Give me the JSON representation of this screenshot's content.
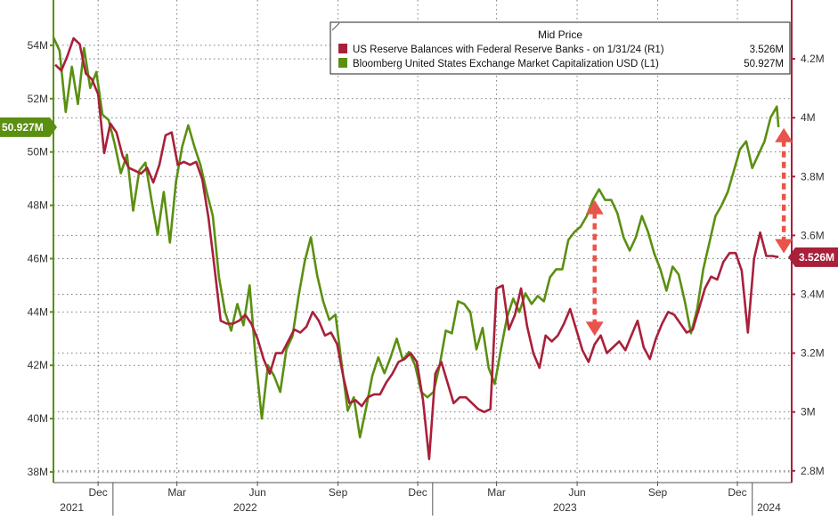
{
  "chart_data": {
    "type": "line",
    "legend": {
      "title": "Mid Price",
      "position": "top-right",
      "entries": [
        {
          "label": "US Reserve Balances with Federal Reserve Banks -  on 1/31/24  (R1)",
          "value": "3.526M",
          "color": "#a8203a"
        },
        {
          "label": "Bloomberg United States Exchange Market Capitalization USD  (L1)",
          "value": "50.927M",
          "color": "#5a8f12"
        }
      ]
    },
    "y_left": {
      "min": 37.6,
      "max": 55.7,
      "ticks": [
        "38M",
        "40M",
        "42M",
        "44M",
        "46M",
        "48M",
        "50M",
        "52M",
        "54M"
      ],
      "tick_values": [
        38,
        40,
        42,
        44,
        46,
        48,
        50,
        52,
        54
      ],
      "color": "#5a8f12"
    },
    "y_right": {
      "min": 2.76,
      "max": 4.4,
      "ticks": [
        "2.8M",
        "3M",
        "3.2M",
        "3.4M",
        "3.6M",
        "3.8M",
        "4M",
        "4.2M"
      ],
      "tick_values": [
        2.8,
        3.0,
        3.2,
        3.4,
        3.6,
        3.8,
        4.0,
        4.2
      ],
      "color": "#a8203a"
    },
    "x_axis": {
      "start": "2021-10-25",
      "end": "2024-02-15",
      "month_ticks": [
        {
          "label": "Dec",
          "date": "2021-12-15"
        },
        {
          "label": "Mar",
          "date": "2022-03-15"
        },
        {
          "label": "Jun",
          "date": "2022-06-15"
        },
        {
          "label": "Sep",
          "date": "2022-09-15"
        },
        {
          "label": "Dec",
          "date": "2022-12-15"
        },
        {
          "label": "Mar",
          "date": "2023-03-15"
        },
        {
          "label": "Jun",
          "date": "2023-06-15"
        },
        {
          "label": "Sep",
          "date": "2023-09-15"
        },
        {
          "label": "Dec",
          "date": "2023-12-15"
        }
      ],
      "year_labels": [
        {
          "label": "2021",
          "date": "2021-11-15"
        },
        {
          "label": "2022",
          "date": "2022-06-01"
        },
        {
          "label": "2023",
          "date": "2023-06-01"
        },
        {
          "label": "2024",
          "date": "2024-01-20"
        }
      ]
    },
    "last_value_badges": [
      {
        "axis": "left",
        "value": 50.927,
        "text": "50.927M",
        "color": "#5a8f12"
      },
      {
        "axis": "right",
        "value": 3.526,
        "text": "3.526M",
        "color": "#a8203a"
      }
    ],
    "grid": true,
    "series": [
      {
        "name": "Bloomberg United States Exchange Market Capitalization USD",
        "axis": "left",
        "color": "#5a8f12",
        "points": [
          [
            "2021-10-25",
            54.3
          ],
          [
            "2021-11-01",
            53.8
          ],
          [
            "2021-11-08",
            51.5
          ],
          [
            "2021-11-15",
            53.2
          ],
          [
            "2021-11-22",
            51.8
          ],
          [
            "2021-11-29",
            53.9
          ],
          [
            "2021-12-06",
            52.4
          ],
          [
            "2021-12-13",
            53.0
          ],
          [
            "2021-12-20",
            51.4
          ],
          [
            "2021-12-27",
            51.2
          ],
          [
            "2022-01-03",
            50.3
          ],
          [
            "2022-01-10",
            49.2
          ],
          [
            "2022-01-17",
            49.9
          ],
          [
            "2022-01-24",
            47.8
          ],
          [
            "2022-01-31",
            49.3
          ],
          [
            "2022-02-07",
            49.6
          ],
          [
            "2022-02-14",
            48.2
          ],
          [
            "2022-02-21",
            46.9
          ],
          [
            "2022-02-28",
            48.5
          ],
          [
            "2022-03-07",
            46.6
          ],
          [
            "2022-03-14",
            48.9
          ],
          [
            "2022-03-21",
            50.2
          ],
          [
            "2022-03-28",
            51.0
          ],
          [
            "2022-04-04",
            50.2
          ],
          [
            "2022-04-11",
            49.5
          ],
          [
            "2022-04-18",
            48.5
          ],
          [
            "2022-04-25",
            47.6
          ],
          [
            "2022-05-02",
            45.3
          ],
          [
            "2022-05-09",
            44.0
          ],
          [
            "2022-05-16",
            43.3
          ],
          [
            "2022-05-23",
            44.3
          ],
          [
            "2022-05-30",
            43.5
          ],
          [
            "2022-06-06",
            45.0
          ],
          [
            "2022-06-13",
            42.2
          ],
          [
            "2022-06-20",
            40.0
          ],
          [
            "2022-06-27",
            42.0
          ],
          [
            "2022-07-04",
            41.6
          ],
          [
            "2022-07-11",
            41.0
          ],
          [
            "2022-07-18",
            42.6
          ],
          [
            "2022-07-25",
            43.1
          ],
          [
            "2022-08-01",
            44.6
          ],
          [
            "2022-08-08",
            45.9
          ],
          [
            "2022-08-15",
            46.8
          ],
          [
            "2022-08-22",
            45.4
          ],
          [
            "2022-08-29",
            44.4
          ],
          [
            "2022-09-05",
            43.7
          ],
          [
            "2022-09-12",
            43.9
          ],
          [
            "2022-09-19",
            42.1
          ],
          [
            "2022-09-26",
            40.3
          ],
          [
            "2022-10-03",
            40.8
          ],
          [
            "2022-10-10",
            39.3
          ],
          [
            "2022-10-17",
            40.4
          ],
          [
            "2022-10-24",
            41.6
          ],
          [
            "2022-10-31",
            42.3
          ],
          [
            "2022-11-07",
            41.7
          ],
          [
            "2022-11-14",
            42.3
          ],
          [
            "2022-11-21",
            43.0
          ],
          [
            "2022-11-28",
            42.2
          ],
          [
            "2022-12-05",
            42.5
          ],
          [
            "2022-12-12",
            42.0
          ],
          [
            "2022-12-19",
            41.0
          ],
          [
            "2022-12-26",
            40.8
          ],
          [
            "2023-01-02",
            41.0
          ],
          [
            "2023-01-09",
            42.0
          ],
          [
            "2023-01-16",
            43.3
          ],
          [
            "2023-01-23",
            43.2
          ],
          [
            "2023-01-30",
            44.4
          ],
          [
            "2023-02-06",
            44.3
          ],
          [
            "2023-02-13",
            44.0
          ],
          [
            "2023-02-20",
            42.6
          ],
          [
            "2023-02-27",
            43.4
          ],
          [
            "2023-03-06",
            41.9
          ],
          [
            "2023-03-13",
            41.3
          ],
          [
            "2023-03-20",
            42.6
          ],
          [
            "2023-03-27",
            43.8
          ],
          [
            "2023-04-03",
            44.5
          ],
          [
            "2023-04-10",
            44.0
          ],
          [
            "2023-04-17",
            44.7
          ],
          [
            "2023-04-24",
            44.3
          ],
          [
            "2023-05-01",
            44.6
          ],
          [
            "2023-05-08",
            44.4
          ],
          [
            "2023-05-15",
            45.3
          ],
          [
            "2023-05-22",
            45.6
          ],
          [
            "2023-05-29",
            45.6
          ],
          [
            "2023-06-05",
            46.7
          ],
          [
            "2023-06-12",
            47.0
          ],
          [
            "2023-06-19",
            47.2
          ],
          [
            "2023-06-26",
            47.6
          ],
          [
            "2023-07-03",
            48.2
          ],
          [
            "2023-07-10",
            48.6
          ],
          [
            "2023-07-17",
            48.2
          ],
          [
            "2023-07-24",
            48.2
          ],
          [
            "2023-07-31",
            47.7
          ],
          [
            "2023-08-07",
            46.8
          ],
          [
            "2023-08-14",
            46.3
          ],
          [
            "2023-08-21",
            46.8
          ],
          [
            "2023-08-28",
            47.6
          ],
          [
            "2023-09-04",
            47.0
          ],
          [
            "2023-09-11",
            46.2
          ],
          [
            "2023-09-18",
            45.6
          ],
          [
            "2023-09-25",
            44.8
          ],
          [
            "2023-10-02",
            45.7
          ],
          [
            "2023-10-09",
            45.4
          ],
          [
            "2023-10-16",
            44.4
          ],
          [
            "2023-10-23",
            43.2
          ],
          [
            "2023-10-30",
            44.1
          ],
          [
            "2023-11-06",
            45.6
          ],
          [
            "2023-11-13",
            46.6
          ],
          [
            "2023-11-20",
            47.6
          ],
          [
            "2023-11-27",
            48.0
          ],
          [
            "2023-12-04",
            48.5
          ],
          [
            "2023-12-11",
            49.3
          ],
          [
            "2023-12-18",
            50.1
          ],
          [
            "2023-12-25",
            50.4
          ],
          [
            "2024-01-01",
            49.4
          ],
          [
            "2024-01-08",
            49.9
          ],
          [
            "2024-01-15",
            50.4
          ],
          [
            "2024-01-22",
            51.3
          ],
          [
            "2024-01-29",
            51.7
          ],
          [
            "2024-01-31",
            50.927
          ]
        ]
      },
      {
        "name": "US Reserve Balances with Federal Reserve Banks",
        "axis": "right",
        "color": "#a8203a",
        "points": [
          [
            "2021-10-27",
            4.18
          ],
          [
            "2021-11-03",
            4.16
          ],
          [
            "2021-11-10",
            4.21
          ],
          [
            "2021-11-17",
            4.27
          ],
          [
            "2021-11-24",
            4.25
          ],
          [
            "2021-12-01",
            4.15
          ],
          [
            "2021-12-08",
            4.13
          ],
          [
            "2021-12-15",
            4.08
          ],
          [
            "2021-12-22",
            3.88
          ],
          [
            "2021-12-29",
            3.98
          ],
          [
            "2022-01-05",
            3.95
          ],
          [
            "2022-01-12",
            3.87
          ],
          [
            "2022-01-19",
            3.83
          ],
          [
            "2022-01-26",
            3.82
          ],
          [
            "2022-02-02",
            3.81
          ],
          [
            "2022-02-09",
            3.83
          ],
          [
            "2022-02-16",
            3.78
          ],
          [
            "2022-02-23",
            3.84
          ],
          [
            "2022-03-02",
            3.94
          ],
          [
            "2022-03-09",
            3.95
          ],
          [
            "2022-03-16",
            3.84
          ],
          [
            "2022-03-23",
            3.85
          ],
          [
            "2022-03-30",
            3.84
          ],
          [
            "2022-04-06",
            3.85
          ],
          [
            "2022-04-13",
            3.79
          ],
          [
            "2022-04-20",
            3.66
          ],
          [
            "2022-04-27",
            3.49
          ],
          [
            "2022-05-04",
            3.31
          ],
          [
            "2022-05-11",
            3.3
          ],
          [
            "2022-05-18",
            3.3
          ],
          [
            "2022-05-25",
            3.31
          ],
          [
            "2022-06-01",
            3.33
          ],
          [
            "2022-06-08",
            3.3
          ],
          [
            "2022-06-15",
            3.25
          ],
          [
            "2022-06-22",
            3.18
          ],
          [
            "2022-06-29",
            3.13
          ],
          [
            "2022-07-06",
            3.2
          ],
          [
            "2022-07-13",
            3.2
          ],
          [
            "2022-07-20",
            3.24
          ],
          [
            "2022-07-27",
            3.28
          ],
          [
            "2022-08-03",
            3.27
          ],
          [
            "2022-08-10",
            3.29
          ],
          [
            "2022-08-17",
            3.34
          ],
          [
            "2022-08-24",
            3.31
          ],
          [
            "2022-08-31",
            3.26
          ],
          [
            "2022-09-07",
            3.27
          ],
          [
            "2022-09-14",
            3.23
          ],
          [
            "2022-09-21",
            3.12
          ],
          [
            "2022-09-28",
            3.03
          ],
          [
            "2022-10-05",
            3.04
          ],
          [
            "2022-10-12",
            3.02
          ],
          [
            "2022-10-19",
            3.05
          ],
          [
            "2022-10-26",
            3.06
          ],
          [
            "2022-11-02",
            3.06
          ],
          [
            "2022-11-09",
            3.1
          ],
          [
            "2022-11-16",
            3.13
          ],
          [
            "2022-11-23",
            3.17
          ],
          [
            "2022-11-30",
            3.18
          ],
          [
            "2022-12-07",
            3.2
          ],
          [
            "2022-12-14",
            3.17
          ],
          [
            "2022-12-21",
            3.04
          ],
          [
            "2022-12-28",
            2.84
          ],
          [
            "2023-01-04",
            3.13
          ],
          [
            "2023-01-11",
            3.17
          ],
          [
            "2023-01-18",
            3.1
          ],
          [
            "2023-01-25",
            3.03
          ],
          [
            "2023-02-01",
            3.05
          ],
          [
            "2023-02-08",
            3.05
          ],
          [
            "2023-02-15",
            3.03
          ],
          [
            "2023-02-22",
            3.01
          ],
          [
            "2023-03-01",
            3.0
          ],
          [
            "2023-03-08",
            3.01
          ],
          [
            "2023-03-15",
            3.42
          ],
          [
            "2023-03-22",
            3.43
          ],
          [
            "2023-03-29",
            3.28
          ],
          [
            "2023-04-05",
            3.33
          ],
          [
            "2023-04-12",
            3.42
          ],
          [
            "2023-04-19",
            3.29
          ],
          [
            "2023-04-26",
            3.2
          ],
          [
            "2023-05-03",
            3.15
          ],
          [
            "2023-05-10",
            3.26
          ],
          [
            "2023-05-17",
            3.24
          ],
          [
            "2023-05-24",
            3.26
          ],
          [
            "2023-05-31",
            3.3
          ],
          [
            "2023-06-07",
            3.35
          ],
          [
            "2023-06-14",
            3.28
          ],
          [
            "2023-06-21",
            3.21
          ],
          [
            "2023-06-28",
            3.17
          ],
          [
            "2023-07-05",
            3.23
          ],
          [
            "2023-07-12",
            3.26
          ],
          [
            "2023-07-19",
            3.2
          ],
          [
            "2023-07-26",
            3.22
          ],
          [
            "2023-08-02",
            3.24
          ],
          [
            "2023-08-09",
            3.21
          ],
          [
            "2023-08-16",
            3.26
          ],
          [
            "2023-08-23",
            3.31
          ],
          [
            "2023-08-30",
            3.22
          ],
          [
            "2023-09-06",
            3.18
          ],
          [
            "2023-09-13",
            3.25
          ],
          [
            "2023-09-20",
            3.3
          ],
          [
            "2023-09-27",
            3.34
          ],
          [
            "2023-10-04",
            3.33
          ],
          [
            "2023-10-11",
            3.3
          ],
          [
            "2023-10-18",
            3.27
          ],
          [
            "2023-10-25",
            3.28
          ],
          [
            "2023-11-01",
            3.35
          ],
          [
            "2023-11-08",
            3.42
          ],
          [
            "2023-11-15",
            3.46
          ],
          [
            "2023-11-22",
            3.45
          ],
          [
            "2023-11-29",
            3.51
          ],
          [
            "2023-12-06",
            3.54
          ],
          [
            "2023-12-13",
            3.54
          ],
          [
            "2023-12-20",
            3.48
          ],
          [
            "2023-12-27",
            3.27
          ],
          [
            "2024-01-03",
            3.52
          ],
          [
            "2024-01-10",
            3.61
          ],
          [
            "2024-01-17",
            3.53
          ],
          [
            "2024-01-24",
            3.53
          ],
          [
            "2024-01-31",
            3.526
          ]
        ]
      }
    ],
    "annotations": [
      {
        "type": "double-arrow",
        "color": "#e8544c",
        "date": "2023-07-05",
        "from_left": 48.2,
        "to_left": 43.1
      },
      {
        "type": "double-arrow",
        "color": "#e8544c",
        "date": "2024-02-06",
        "from_left": 50.9,
        "to_left": 46.2
      }
    ]
  }
}
